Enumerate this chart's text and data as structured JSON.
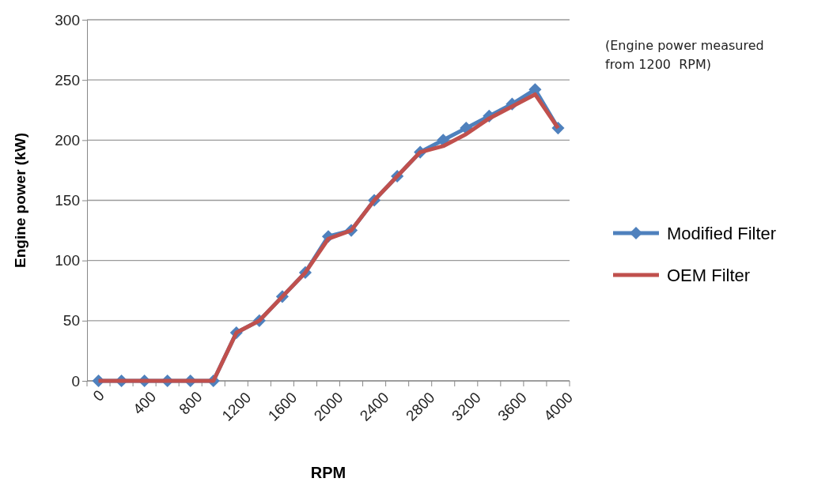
{
  "chart_data": {
    "type": "line",
    "xlabel": "RPM",
    "ylabel": "Engine power (kW)",
    "categories": [
      "0",
      null,
      "400",
      null,
      "800",
      null,
      "1200",
      null,
      "1600",
      null,
      "2000",
      null,
      "2400",
      null,
      "2800",
      null,
      "3200",
      null,
      "3600",
      null,
      "4000"
    ],
    "series": [
      {
        "name": "Modified Filter",
        "color": "#4f81bd",
        "marker": "diamond",
        "values": [
          0,
          0,
          0,
          0,
          0,
          0,
          40,
          50,
          70,
          90,
          120,
          125,
          150,
          170,
          190,
          200,
          210,
          220,
          230,
          242,
          210
        ]
      },
      {
        "name": "OEM Filter",
        "color": "#c0504d",
        "marker": "none",
        "values": [
          0,
          0,
          0,
          0,
          0,
          0,
          40,
          50,
          70,
          90,
          118,
          125,
          150,
          170,
          190,
          195,
          205,
          218,
          228,
          238,
          210
        ]
      }
    ],
    "ylim": [
      0,
      300
    ],
    "yticks": [
      0,
      50,
      100,
      150,
      200,
      250,
      300
    ],
    "grid": "y",
    "legend": "right",
    "annotations": [
      "(Engine power measured from 1200  RPM)"
    ]
  }
}
